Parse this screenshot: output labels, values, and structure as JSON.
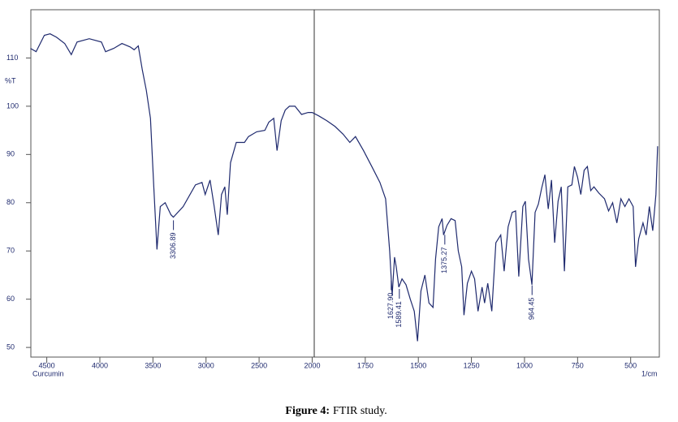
{
  "chart_data": {
    "type": "line",
    "y_label": "%T",
    "x_label": "1/cm",
    "sample_label": "Curcumin",
    "xlim": [
      4650,
      365
    ],
    "ylim": [
      48,
      120
    ],
    "xticks": [
      4500,
      4000,
      3500,
      3000,
      2500,
      2000,
      1750,
      1500,
      1250,
      1000,
      750,
      500
    ],
    "yticks": [
      50,
      60,
      70,
      80,
      90,
      100,
      110
    ],
    "color": "#1f2a6e",
    "x": [
      4654,
      4600,
      4523,
      4469,
      4408,
      4331,
      4269,
      4215,
      4100,
      3985,
      3946,
      3869,
      3792,
      3715,
      3677,
      3638,
      3600,
      3562,
      3523,
      3492,
      3462,
      3431,
      3385,
      3331,
      3308,
      3215,
      3100,
      3038,
      3008,
      2962,
      2923,
      2885,
      2854,
      2823,
      2800,
      2769,
      2715,
      2638,
      2600,
      2523,
      2446,
      2408,
      2362,
      2331,
      2292,
      2254,
      2215,
      2162,
      2100,
      2038,
      2000,
      1969,
      1931,
      1892,
      1854,
      1823,
      1796,
      1758,
      1719,
      1681,
      1654,
      1635,
      1623,
      1612,
      1604,
      1592,
      1577,
      1558,
      1538,
      1519,
      1504,
      1488,
      1469,
      1450,
      1431,
      1419,
      1404,
      1388,
      1381,
      1365,
      1346,
      1327,
      1312,
      1296,
      1285,
      1269,
      1250,
      1235,
      1219,
      1200,
      1188,
      1173,
      1154,
      1135,
      1112,
      1096,
      1077,
      1058,
      1042,
      1027,
      1008,
      996,
      981,
      965,
      950,
      935,
      919,
      904,
      888,
      873,
      858,
      842,
      827,
      812,
      796,
      777,
      765,
      750,
      735,
      719,
      704,
      688,
      673,
      650,
      623,
      604,
      585,
      565,
      546,
      527,
      508,
      488,
      477,
      462,
      442,
      427,
      412,
      396,
      381,
      373
    ],
    "values": [
      112,
      111.3,
      114.7,
      115,
      114.3,
      113,
      110.7,
      113.3,
      114,
      113.3,
      111.3,
      112,
      113,
      112.3,
      111.7,
      112.5,
      107.5,
      103.3,
      97.5,
      83.3,
      70.3,
      79.2,
      80,
      77.5,
      77,
      79.2,
      83.7,
      84.2,
      81.7,
      84.7,
      79.2,
      73.3,
      81.7,
      83.3,
      77.5,
      88.3,
      92.5,
      92.5,
      93.7,
      94.7,
      95,
      96.7,
      97.5,
      90.8,
      97,
      99.2,
      100,
      100,
      98.3,
      98.7,
      98.7,
      98,
      97,
      95.8,
      94.2,
      92.5,
      93.7,
      90.8,
      87.5,
      84.2,
      80.8,
      70,
      60.8,
      68.7,
      66.7,
      62.5,
      64.2,
      63,
      60,
      57.5,
      51.3,
      61.7,
      65,
      59.2,
      58.3,
      68.3,
      75,
      76.7,
      73.3,
      75.3,
      76.7,
      76.3,
      70,
      66.7,
      56.7,
      63.3,
      65.8,
      64.2,
      57.5,
      62.5,
      59.2,
      63.3,
      57.5,
      71.7,
      73.3,
      65.8,
      75,
      78,
      78.3,
      64.7,
      79.2,
      80.3,
      68.3,
      63,
      78,
      79.7,
      83,
      85.8,
      78.7,
      84.7,
      71.7,
      80.3,
      83.3,
      65.8,
      83.3,
      83.7,
      87.5,
      85.3,
      81.7,
      86.7,
      87.5,
      82.5,
      83.3,
      82,
      80.8,
      78.3,
      80,
      75.8,
      80.8,
      79.2,
      80.8,
      79.2,
      66.7,
      72.5,
      75.8,
      73.3,
      79.2,
      74.2,
      81.7,
      91.7
    ],
    "peaks": [
      {
        "value": 3306.89,
        "label": "3306.89"
      },
      {
        "value": 1627.9,
        "label": "1627.90"
      },
      {
        "value": 1589.41,
        "label": "1589.41"
      },
      {
        "value": 1375.27,
        "label": "1375.27"
      },
      {
        "value": 964.45,
        "label": "964.45"
      }
    ]
  },
  "caption": {
    "label": "Figure 4:",
    "text": "FTIR study."
  }
}
